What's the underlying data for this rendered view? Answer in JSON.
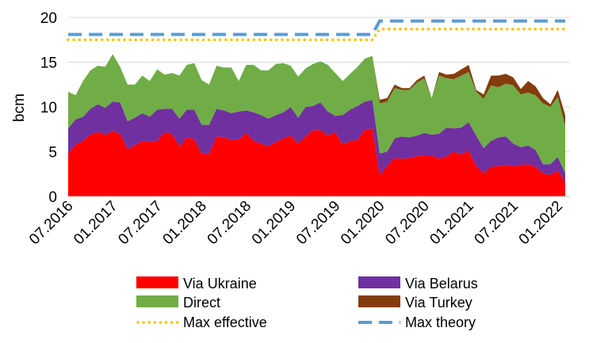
{
  "chart_data": {
    "type": "area",
    "ylabel": "bcm",
    "ylim": [
      0,
      20
    ],
    "yticks": [
      0,
      5,
      10,
      15,
      20
    ],
    "grid": "horizontal",
    "legend_position": "bottom",
    "x": [
      "07.2016",
      "08.2016",
      "09.2016",
      "10.2016",
      "11.2016",
      "12.2016",
      "01.2017",
      "02.2017",
      "03.2017",
      "04.2017",
      "05.2017",
      "06.2017",
      "07.2017",
      "08.2017",
      "09.2017",
      "10.2017",
      "11.2017",
      "12.2017",
      "01.2018",
      "02.2018",
      "03.2018",
      "04.2018",
      "05.2018",
      "06.2018",
      "07.2018",
      "08.2018",
      "09.2018",
      "10.2018",
      "11.2018",
      "12.2018",
      "01.2019",
      "02.2019",
      "03.2019",
      "04.2019",
      "05.2019",
      "06.2019",
      "07.2019",
      "08.2019",
      "09.2019",
      "10.2019",
      "11.2019",
      "12.2019",
      "01.2020",
      "02.2020",
      "03.2020",
      "04.2020",
      "05.2020",
      "06.2020",
      "07.2020",
      "08.2020",
      "09.2020",
      "10.2020",
      "11.2020",
      "12.2020",
      "01.2021",
      "02.2021",
      "03.2021",
      "04.2021",
      "05.2021",
      "06.2021",
      "07.2021",
      "08.2021",
      "09.2021",
      "10.2021",
      "11.2021",
      "12.2021",
      "01.2022",
      "02.2022"
    ],
    "xtick_labels": [
      "07.2016",
      "01.2017",
      "07.2017",
      "01.2018",
      "07.2018",
      "01.2019",
      "07.2019",
      "01.2020",
      "07.2020",
      "01.2021",
      "07.2021",
      "01.2022"
    ],
    "stacked_series": [
      {
        "name": "Via Ukraine",
        "color": "#ff0000",
        "values": [
          4.8,
          5.8,
          6.2,
          6.9,
          7.2,
          6.9,
          7.3,
          7.0,
          5.3,
          5.7,
          6.2,
          6.1,
          6.2,
          7.2,
          7.0,
          5.6,
          6.6,
          6.4,
          4.8,
          4.8,
          6.7,
          6.6,
          6.3,
          6.4,
          7.1,
          6.2,
          5.9,
          5.6,
          6.1,
          6.5,
          6.8,
          5.9,
          6.7,
          7.4,
          7.4,
          6.8,
          7.2,
          5.8,
          6.2,
          6.3,
          7.5,
          7.6,
          2.4,
          3.4,
          4.3,
          4.2,
          4.3,
          4.5,
          4.6,
          4.6,
          4.2,
          4.5,
          5.0,
          4.7,
          5.1,
          3.4,
          2.6,
          3.3,
          3.4,
          3.5,
          3.4,
          3.5,
          3.6,
          3.3,
          2.6,
          2.4,
          2.9,
          1.6
        ]
      },
      {
        "name": "Via Belarus",
        "color": "#7030a0",
        "values": [
          2.8,
          2.8,
          2.7,
          2.9,
          3.1,
          3.0,
          3.3,
          3.5,
          3.1,
          3.1,
          3.1,
          2.8,
          3.5,
          2.6,
          2.8,
          3.1,
          3.1,
          3.3,
          3.2,
          3.2,
          3.1,
          3.0,
          3.0,
          3.1,
          2.5,
          3.2,
          3.2,
          3.1,
          3.0,
          2.9,
          3.2,
          2.9,
          3.3,
          2.7,
          3.1,
          2.7,
          1.8,
          3.3,
          3.5,
          3.8,
          3.1,
          3.2,
          2.4,
          1.6,
          2.2,
          2.5,
          2.3,
          2.3,
          2.5,
          2.3,
          2.8,
          3.2,
          2.6,
          3.0,
          3.2,
          3.4,
          2.8,
          2.9,
          3.2,
          3.2,
          2.5,
          2.0,
          2.1,
          1.9,
          1.0,
          1.2,
          1.5,
          1.0
        ]
      },
      {
        "name": "Direct",
        "color": "#70ad47",
        "values": [
          4.1,
          2.7,
          4.0,
          4.3,
          4.3,
          4.6,
          5.3,
          4.0,
          4.1,
          3.7,
          4.2,
          4.0,
          4.5,
          3.8,
          4.0,
          4.8,
          5.0,
          5.2,
          5.0,
          4.5,
          4.8,
          4.8,
          5.1,
          3.4,
          5.1,
          5.3,
          5.0,
          5.4,
          5.7,
          5.5,
          4.6,
          4.6,
          4.3,
          4.7,
          4.6,
          5.2,
          4.8,
          3.8,
          4.0,
          4.4,
          4.8,
          4.9,
          5.6,
          5.6,
          5.6,
          5.2,
          5.3,
          5.9,
          6.1,
          4.1,
          6.5,
          5.5,
          5.5,
          5.8,
          5.6,
          4.9,
          5.5,
          6.2,
          5.6,
          5.9,
          6.5,
          5.9,
          5.9,
          6.1,
          6.8,
          6.4,
          6.7,
          5.3
        ]
      },
      {
        "name": "Via Turkey",
        "color": "#843c0c",
        "values": [
          0,
          0,
          0,
          0,
          0,
          0,
          0,
          0,
          0,
          0,
          0,
          0,
          0,
          0,
          0,
          0,
          0,
          0,
          0,
          0,
          0,
          0,
          0,
          0,
          0,
          0,
          0,
          0,
          0,
          0,
          0,
          0,
          0,
          0,
          0,
          0,
          0,
          0,
          0,
          0,
          0,
          0,
          0.4,
          0.4,
          0.4,
          0.2,
          0.2,
          0.3,
          0.3,
          0,
          0.4,
          0.4,
          0.6,
          0.7,
          0.8,
          0.2,
          0.5,
          1.1,
          1.3,
          1.1,
          0.9,
          0.6,
          1.3,
          1.0,
          0.6,
          0.3,
          0.8,
          1.2
        ]
      }
    ],
    "lines": [
      {
        "name": "Max effective",
        "color": "#ffc000",
        "style": "dotted",
        "values": [
          17.5,
          17.5,
          17.5,
          17.5,
          17.5,
          17.5,
          17.5,
          17.5,
          17.5,
          17.5,
          17.5,
          17.5,
          17.5,
          17.5,
          17.5,
          17.5,
          17.5,
          17.5,
          17.5,
          17.5,
          17.5,
          17.5,
          17.5,
          17.5,
          17.5,
          17.5,
          17.5,
          17.5,
          17.5,
          17.5,
          17.5,
          17.5,
          17.5,
          17.5,
          17.5,
          17.5,
          17.5,
          17.5,
          17.5,
          17.5,
          17.5,
          17.5,
          18.7,
          18.7,
          18.7,
          18.7,
          18.7,
          18.7,
          18.7,
          18.7,
          18.7,
          18.7,
          18.7,
          18.7,
          18.7,
          18.7,
          18.7,
          18.7,
          18.7,
          18.7,
          18.7,
          18.7,
          18.7,
          18.7,
          18.7,
          18.7,
          18.7,
          18.7
        ]
      },
      {
        "name": "Max theory",
        "color": "#5b9bd5",
        "style": "dashed",
        "values": [
          18.1,
          18.1,
          18.1,
          18.1,
          18.1,
          18.1,
          18.1,
          18.1,
          18.1,
          18.1,
          18.1,
          18.1,
          18.1,
          18.1,
          18.1,
          18.1,
          18.1,
          18.1,
          18.1,
          18.1,
          18.1,
          18.1,
          18.1,
          18.1,
          18.1,
          18.1,
          18.1,
          18.1,
          18.1,
          18.1,
          18.1,
          18.1,
          18.1,
          18.1,
          18.1,
          18.1,
          18.1,
          18.1,
          18.1,
          18.1,
          18.1,
          18.1,
          19.6,
          19.6,
          19.6,
          19.6,
          19.6,
          19.6,
          19.6,
          19.6,
          19.6,
          19.6,
          19.6,
          19.6,
          19.6,
          19.6,
          19.6,
          19.6,
          19.6,
          19.6,
          19.6,
          19.6,
          19.6,
          19.6,
          19.6,
          19.6,
          19.6,
          19.6
        ]
      }
    ],
    "legend": [
      {
        "label": "Via Ukraine",
        "kind": "area",
        "color": "#ff0000"
      },
      {
        "label": "Via Belarus",
        "kind": "area",
        "color": "#7030a0"
      },
      {
        "label": "Direct",
        "kind": "area",
        "color": "#70ad47"
      },
      {
        "label": "Via Turkey",
        "kind": "area",
        "color": "#843c0c"
      },
      {
        "label": "Max effective",
        "kind": "dotted",
        "color": "#ffc000"
      },
      {
        "label": "Max theory",
        "kind": "dashed",
        "color": "#5b9bd5"
      }
    ]
  }
}
